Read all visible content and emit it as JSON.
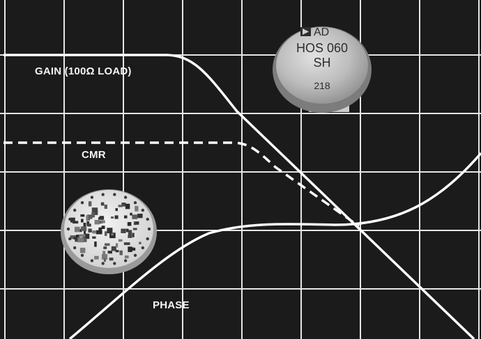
{
  "curve_labels": {
    "gain": "GAIN (100Ω LOAD)",
    "cmr": "CMR",
    "phase": "PHASE"
  },
  "component_marking": {
    "brand": "AD",
    "model": "HOS 060",
    "suffix": "SH",
    "code": "218"
  },
  "colors": {
    "background": "#1b1b1b",
    "grid": "#e6e6e6",
    "curves": "#ffffff",
    "metal_can": "#b9b9b9"
  },
  "icons": {
    "metal_can": "to-99-metal-can-package",
    "die": "hybrid-circuit-die",
    "logo": "analog-devices-logo"
  }
}
